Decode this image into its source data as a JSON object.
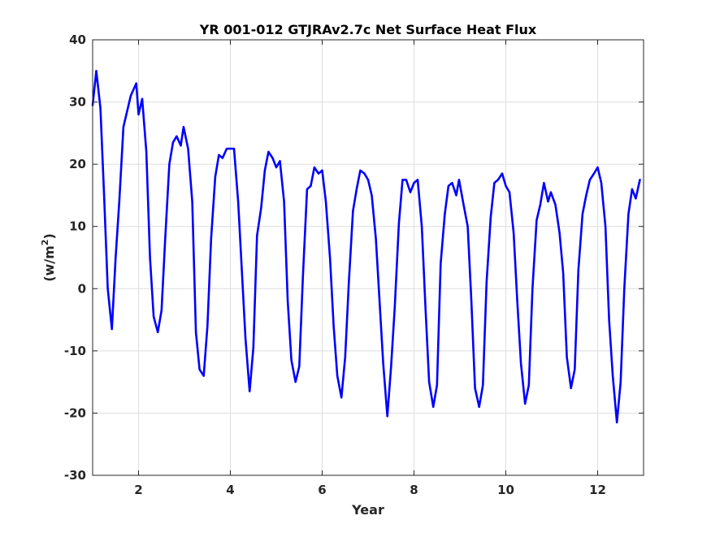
{
  "chart_data": {
    "type": "line",
    "title": "YR 001-012 GTJRAv2.7c Net Surface Heat Flux",
    "xlabel": "Year",
    "ylabel_main": "(w/m",
    "ylabel_sup": "2",
    "ylabel_close": ")",
    "xlim": [
      1,
      13
    ],
    "ylim": [
      -30,
      40
    ],
    "x_ticks": [
      2,
      4,
      6,
      8,
      10,
      12
    ],
    "x_tick_labels": [
      "2",
      "4",
      "6",
      "8",
      "10",
      "12"
    ],
    "y_ticks": [
      -30,
      -20,
      -10,
      0,
      10,
      20,
      30,
      40
    ],
    "y_tick_labels": [
      "-30",
      "-20",
      "-10",
      "0",
      "10",
      "20",
      "30",
      "40"
    ],
    "grid": true,
    "line_color": "#0000ff",
    "series": [
      {
        "points": [
          [
            1.0,
            29.5
          ],
          [
            1.08,
            35.0
          ],
          [
            1.17,
            29.0
          ],
          [
            1.25,
            15.0
          ],
          [
            1.33,
            0.0
          ],
          [
            1.42,
            -6.5
          ],
          [
            1.5,
            5.0
          ],
          [
            1.58,
            14.0
          ],
          [
            1.67,
            26.0
          ],
          [
            1.75,
            28.5
          ],
          [
            1.83,
            31.0
          ],
          [
            1.95,
            33.0
          ],
          [
            2.0,
            28.0
          ],
          [
            2.08,
            30.5
          ],
          [
            2.17,
            22.0
          ],
          [
            2.25,
            5.0
          ],
          [
            2.33,
            -4.5
          ],
          [
            2.42,
            -7.0
          ],
          [
            2.5,
            -3.5
          ],
          [
            2.58,
            8.0
          ],
          [
            2.67,
            20.0
          ],
          [
            2.75,
            23.5
          ],
          [
            2.83,
            24.5
          ],
          [
            2.92,
            23.0
          ],
          [
            2.98,
            26.0
          ],
          [
            3.08,
            22.5
          ],
          [
            3.17,
            14.0
          ],
          [
            3.25,
            -7.0
          ],
          [
            3.33,
            -13.0
          ],
          [
            3.42,
            -14.0
          ],
          [
            3.5,
            -6.0
          ],
          [
            3.58,
            8.0
          ],
          [
            3.67,
            18.0
          ],
          [
            3.75,
            21.5
          ],
          [
            3.83,
            21.0
          ],
          [
            3.92,
            22.5
          ],
          [
            4.08,
            22.5
          ],
          [
            4.17,
            14.0
          ],
          [
            4.25,
            3.0
          ],
          [
            4.33,
            -8.0
          ],
          [
            4.42,
            -16.5
          ],
          [
            4.5,
            -9.5
          ],
          [
            4.58,
            8.5
          ],
          [
            4.67,
            13.0
          ],
          [
            4.75,
            19.0
          ],
          [
            4.83,
            22.0
          ],
          [
            4.92,
            21.0
          ],
          [
            5.0,
            19.5
          ],
          [
            5.08,
            20.5
          ],
          [
            5.17,
            14.0
          ],
          [
            5.25,
            -2.0
          ],
          [
            5.33,
            -11.5
          ],
          [
            5.42,
            -15.0
          ],
          [
            5.5,
            -12.5
          ],
          [
            5.58,
            2.0
          ],
          [
            5.67,
            16.0
          ],
          [
            5.75,
            16.5
          ],
          [
            5.83,
            19.5
          ],
          [
            5.92,
            18.5
          ],
          [
            6.0,
            19.0
          ],
          [
            6.08,
            14.0
          ],
          [
            6.17,
            5.0
          ],
          [
            6.25,
            -6.0
          ],
          [
            6.33,
            -14.0
          ],
          [
            6.42,
            -17.5
          ],
          [
            6.5,
            -11.0
          ],
          [
            6.58,
            1.0
          ],
          [
            6.67,
            12.5
          ],
          [
            6.75,
            16.0
          ],
          [
            6.83,
            19.0
          ],
          [
            6.92,
            18.5
          ],
          [
            7.0,
            17.5
          ],
          [
            7.08,
            15.0
          ],
          [
            7.17,
            8.0
          ],
          [
            7.25,
            -2.0
          ],
          [
            7.33,
            -12.0
          ],
          [
            7.42,
            -20.5
          ],
          [
            7.5,
            -12.5
          ],
          [
            7.58,
            -3.0
          ],
          [
            7.67,
            10.5
          ],
          [
            7.75,
            17.5
          ],
          [
            7.83,
            17.5
          ],
          [
            7.92,
            15.5
          ],
          [
            8.0,
            17.0
          ],
          [
            8.08,
            17.5
          ],
          [
            8.17,
            10.0
          ],
          [
            8.25,
            -3.0
          ],
          [
            8.33,
            -15.0
          ],
          [
            8.42,
            -19.0
          ],
          [
            8.5,
            -15.5
          ],
          [
            8.58,
            4.0
          ],
          [
            8.67,
            12.0
          ],
          [
            8.75,
            16.5
          ],
          [
            8.83,
            17.0
          ],
          [
            8.92,
            15.0
          ],
          [
            8.98,
            17.5
          ],
          [
            9.08,
            13.5
          ],
          [
            9.17,
            10.0
          ],
          [
            9.25,
            -2.0
          ],
          [
            9.33,
            -16.0
          ],
          [
            9.42,
            -19.0
          ],
          [
            9.5,
            -15.5
          ],
          [
            9.58,
            1.0
          ],
          [
            9.67,
            11.5
          ],
          [
            9.75,
            17.0
          ],
          [
            9.83,
            17.5
          ],
          [
            9.92,
            18.5
          ],
          [
            10.0,
            16.5
          ],
          [
            10.08,
            15.5
          ],
          [
            10.17,
            9.0
          ],
          [
            10.25,
            -2.0
          ],
          [
            10.33,
            -12.0
          ],
          [
            10.42,
            -18.5
          ],
          [
            10.5,
            -15.5
          ],
          [
            10.58,
            0.0
          ],
          [
            10.67,
            11.0
          ],
          [
            10.75,
            13.5
          ],
          [
            10.83,
            17.0
          ],
          [
            10.92,
            14.0
          ],
          [
            10.98,
            15.5
          ],
          [
            11.08,
            13.5
          ],
          [
            11.17,
            9.0
          ],
          [
            11.25,
            2.5
          ],
          [
            11.33,
            -11.0
          ],
          [
            11.42,
            -16.0
          ],
          [
            11.5,
            -13.0
          ],
          [
            11.58,
            3.0
          ],
          [
            11.67,
            12.0
          ],
          [
            11.75,
            15.0
          ],
          [
            11.83,
            17.5
          ],
          [
            11.92,
            18.5
          ],
          [
            12.0,
            19.5
          ],
          [
            12.08,
            17.0
          ],
          [
            12.17,
            10.0
          ],
          [
            12.25,
            -5.0
          ],
          [
            12.33,
            -14.0
          ],
          [
            12.42,
            -21.5
          ],
          [
            12.5,
            -15.0
          ],
          [
            12.58,
            0.0
          ],
          [
            12.67,
            12.0
          ],
          [
            12.75,
            16.0
          ],
          [
            12.83,
            14.5
          ],
          [
            12.92,
            17.5
          ]
        ]
      }
    ]
  }
}
